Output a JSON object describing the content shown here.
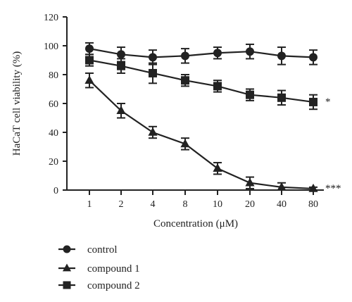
{
  "chart_data": {
    "type": "line",
    "title": "",
    "xlabel": "Concentration (μM)",
    "ylabel": "HaCaT cell viability (%)",
    "categories": [
      "1",
      "2",
      "4",
      "8",
      "10",
      "20",
      "40",
      "80"
    ],
    "ylim": [
      0,
      120
    ],
    "yticks": [
      "0",
      "20",
      "40",
      "60",
      "80",
      "100",
      "120"
    ],
    "grid": false,
    "legend_position": "bottom-left",
    "series": [
      {
        "name": "control",
        "marker": "circle",
        "values": [
          98,
          94,
          92,
          93,
          95,
          96,
          93,
          92
        ],
        "errors": [
          4,
          5,
          5,
          5,
          4,
          5,
          6,
          5
        ],
        "significance": ""
      },
      {
        "name": "compound 1",
        "marker": "triangle",
        "values": [
          76,
          55,
          40,
          32,
          15,
          5,
          2,
          1
        ],
        "errors": [
          5,
          5,
          4,
          4,
          4,
          4,
          3,
          1
        ],
        "significance": "***"
      },
      {
        "name": "compound 2",
        "marker": "square",
        "values": [
          90,
          86,
          81,
          76,
          72,
          66,
          64,
          61
        ],
        "errors": [
          4,
          5,
          7,
          4,
          4,
          4,
          5,
          5
        ],
        "significance": "*"
      }
    ],
    "colors": {
      "line": "#222222",
      "background": "#ffffff"
    }
  }
}
